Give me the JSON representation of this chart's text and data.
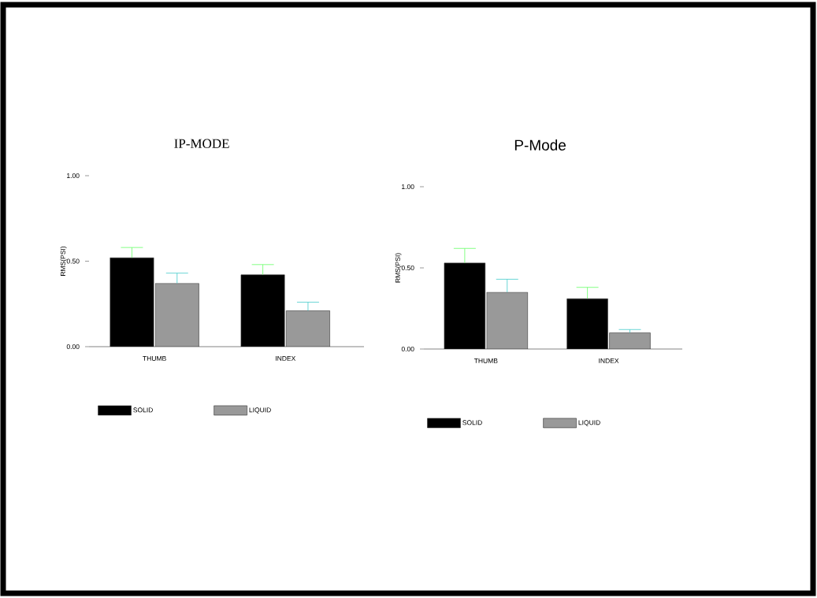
{
  "chart_data": [
    {
      "type": "bar",
      "title": "IP-MODE",
      "ylabel": "RMS(PSI)",
      "categories": [
        "THUMB",
        "INDEX"
      ],
      "series": [
        {
          "name": "SOLID",
          "color": "#000000",
          "values": [
            0.52,
            0.42
          ],
          "errors": [
            [
              0.52,
              0.58
            ],
            [
              0.42,
              0.48
            ]
          ]
        },
        {
          "name": "LIQUID",
          "color": "#999999",
          "values": [
            0.37,
            0.21
          ],
          "errors": [
            [
              0.37,
              0.43
            ],
            [
              0.21,
              0.26
            ]
          ]
        }
      ],
      "ylim": [
        0,
        1.0
      ],
      "yticks": [
        {
          "value": 0,
          "label": "0.00"
        },
        {
          "value": 0.5,
          "label": "0.50"
        },
        {
          "value": 1.0,
          "label": "1.00"
        }
      ],
      "legend": "bottom"
    },
    {
      "type": "bar",
      "title": "P-Mode",
      "ylabel": "RMS(PSI)",
      "categories": [
        "THUMB",
        "INDEX"
      ],
      "series": [
        {
          "name": "SOLID",
          "color": "#000000",
          "values": [
            0.53,
            0.31
          ],
          "errors": [
            [
              0.53,
              0.62
            ],
            [
              0.31,
              0.38
            ]
          ]
        },
        {
          "name": "LIQUID",
          "color": "#999999",
          "values": [
            0.35,
            0.1
          ],
          "errors": [
            [
              0.35,
              0.43
            ],
            [
              0.1,
              0.12
            ]
          ]
        }
      ],
      "ylim": [
        0,
        1.0
      ],
      "yticks": [
        {
          "value": 0,
          "label": "0.00"
        },
        {
          "value": 0.5,
          "label": "0.50"
        },
        {
          "value": 1.0,
          "label": "1.00"
        }
      ],
      "legend": "bottom"
    }
  ]
}
